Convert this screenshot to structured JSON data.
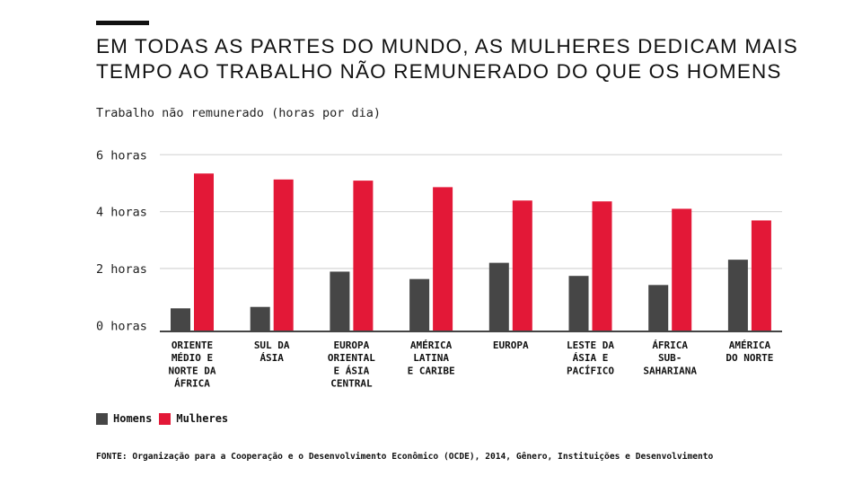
{
  "title_lines": [
    "EM TODAS AS PARTES DO MUNDO, AS MULHERES DEDICAM MAIS",
    "TEMPO AO TRABALHO NÃO REMUNERADO DO QUE OS HOMENS"
  ],
  "source": "FONTE: Organização para a Cooperação e o Desenvolvimento Econômico (OCDE), 2014, Gênero, Instituições e Desenvolvimento",
  "colors": {
    "Homens": "#464646",
    "Mulheres": "#e31837",
    "grid": "#d9d9d9",
    "axis": "#444444"
  },
  "chart_data": {
    "type": "bar",
    "title": "EM TODAS AS PARTES DO MUNDO, AS MULHERES DEDICAM MAIS TEMPO AO TRABALHO NÃO REMUNERADO DO QUE OS HOMENS",
    "ylabel": "Trabalho não remunerado (horas por dia)",
    "xlabel": "",
    "ylim": [
      0,
      6
    ],
    "yticks": [
      0,
      2,
      4,
      6
    ],
    "ytick_labels": [
      "0 horas",
      "2 horas",
      "4 horas",
      "6 horas"
    ],
    "grid": true,
    "legend": "bottom-left",
    "categories": [
      [
        "ORIENTE",
        "MÉDIO E",
        "NORTE DA",
        "ÁFRICA"
      ],
      [
        "SUL DA",
        "ÁSIA"
      ],
      [
        "EUROPA",
        "ORIENTAL",
        "E ÁSIA",
        "CENTRAL"
      ],
      [
        "AMÉRICA",
        "LATINA",
        "E CARIBE"
      ],
      [
        "EUROPA"
      ],
      [
        "LESTE DA",
        "ÁSIA E",
        "PACÍFICO"
      ],
      [
        "ÁFRICA",
        "SUB-",
        "SAHARIANA"
      ],
      [
        "AMÉRICA",
        "DO NORTE"
      ]
    ],
    "series": [
      {
        "name": "Homens",
        "values": [
          0.6,
          0.65,
          1.89,
          1.63,
          2.2,
          1.74,
          1.42,
          2.31
        ]
      },
      {
        "name": "Mulheres",
        "values": [
          5.34,
          5.13,
          5.09,
          4.86,
          4.39,
          4.36,
          4.1,
          3.69
        ]
      }
    ]
  }
}
